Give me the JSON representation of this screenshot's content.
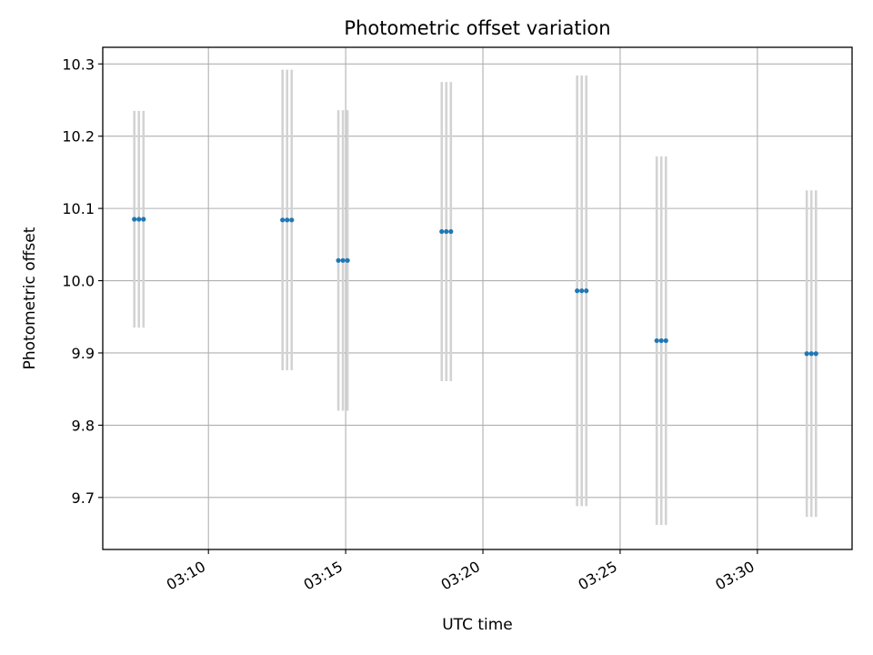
{
  "chart_data": {
    "type": "scatter",
    "title": "Photometric offset variation",
    "xlabel": "UTC time",
    "ylabel": "Photometric offset",
    "x_axis": {
      "type": "time",
      "range": [
        "03:06:09",
        "03:33:27"
      ],
      "ticks": [
        "03:10",
        "03:15",
        "03:20",
        "03:25",
        "03:30"
      ]
    },
    "y_axis": {
      "range": [
        9.628,
        10.323
      ],
      "ticks": [
        "9.7",
        "9.8",
        "9.9",
        "10.0",
        "10.1",
        "10.2",
        "10.3"
      ]
    },
    "grid": true,
    "colors": {
      "points": "#1f77b4",
      "errorbars": "#d3d3d3",
      "grid": "#b0b0b0"
    },
    "points": [
      {
        "t": "03:07:18",
        "y": 10.085,
        "err": 0.15
      },
      {
        "t": "03:07:28",
        "y": 10.085,
        "err": 0.15
      },
      {
        "t": "03:07:38",
        "y": 10.085,
        "err": 0.15
      },
      {
        "t": "03:12:42",
        "y": 10.084,
        "err": 0.208
      },
      {
        "t": "03:12:52",
        "y": 10.084,
        "err": 0.208
      },
      {
        "t": "03:13:02",
        "y": 10.084,
        "err": 0.208
      },
      {
        "t": "03:14:44",
        "y": 10.028,
        "err": 0.208
      },
      {
        "t": "03:14:54",
        "y": 10.028,
        "err": 0.208
      },
      {
        "t": "03:15:04",
        "y": 10.028,
        "err": 0.208
      },
      {
        "t": "03:18:30",
        "y": 10.068,
        "err": 0.207
      },
      {
        "t": "03:18:40",
        "y": 10.068,
        "err": 0.207
      },
      {
        "t": "03:18:50",
        "y": 10.068,
        "err": 0.207
      },
      {
        "t": "03:23:26",
        "y": 9.986,
        "err": 0.298
      },
      {
        "t": "03:23:36",
        "y": 9.986,
        "err": 0.298
      },
      {
        "t": "03:23:46",
        "y": 9.986,
        "err": 0.298
      },
      {
        "t": "03:26:20",
        "y": 9.917,
        "err": 0.255
      },
      {
        "t": "03:26:30",
        "y": 9.917,
        "err": 0.255
      },
      {
        "t": "03:26:40",
        "y": 9.917,
        "err": 0.255
      },
      {
        "t": "03:31:48",
        "y": 9.899,
        "err": 0.226
      },
      {
        "t": "03:31:58",
        "y": 9.899,
        "err": 0.226
      },
      {
        "t": "03:32:08",
        "y": 9.899,
        "err": 0.226
      }
    ]
  }
}
